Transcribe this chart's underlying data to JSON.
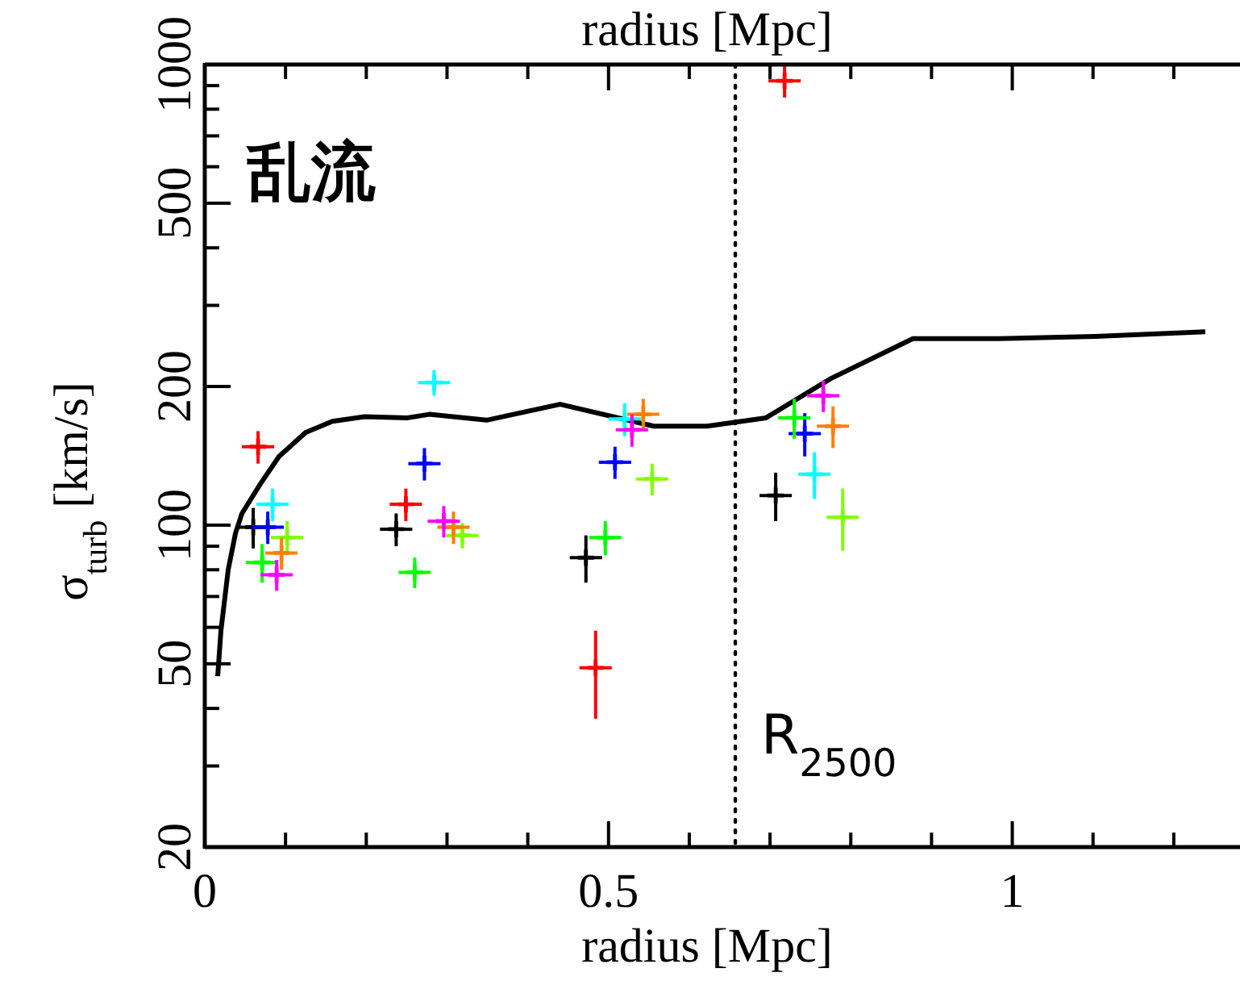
{
  "chart_data": {
    "type": "scatter",
    "xlabel": "radius [Mpc]",
    "x2label": "radius [Mpc]",
    "ylabel": "σ$_{turb}$ [km/s]",
    "annotations": [
      "乱流"
    ],
    "log": "y",
    "marker": "cross",
    "xlim": [
      0,
      1.28
    ],
    "ylim": [
      20,
      1000
    ],
    "xticks": [
      0,
      {
        "value": 0.1,
        "label": null
      },
      {
        "value": 0.2,
        "label": null
      },
      {
        "value": 0.3,
        "label": null
      },
      {
        "value": 0.4,
        "label": null
      },
      0.5,
      {
        "value": 0.6,
        "label": null
      },
      {
        "value": 0.7,
        "label": null
      },
      {
        "value": 0.8,
        "label": null
      },
      {
        "value": 0.9,
        "label": null
      },
      1,
      {
        "value": 1.1,
        "label": null
      },
      {
        "value": 1.2,
        "label": null
      }
    ],
    "yticks": [
      20,
      {
        "value": 30,
        "label": null
      },
      {
        "value": 40,
        "label": null
      },
      50,
      {
        "value": 60,
        "label": null
      },
      {
        "value": 70,
        "label": null
      },
      {
        "value": 80,
        "label": null
      },
      {
        "value": 90,
        "label": null
      },
      100,
      200,
      {
        "value": 300,
        "label": null
      },
      {
        "value": 400,
        "label": null
      },
      500,
      {
        "value": 600,
        "label": null
      },
      {
        "value": 700,
        "label": null
      },
      {
        "value": 800,
        "label": null
      },
      {
        "value": 900,
        "label": null
      },
      1000
    ],
    "ref_lines": [
      {
        "axis": "x",
        "value": 0.657,
        "label": "R$_{2500}$",
        "line_style": "dotted",
        "color": "#000000"
      }
    ],
    "series": [
      {
        "type": "line",
        "color": "#000000",
        "line_style": "solid",
        "marker": "none",
        "x": [
          0.016,
          0.02,
          0.029,
          0.038,
          0.046,
          0.069,
          0.092,
          0.125,
          0.158,
          0.198,
          0.251,
          0.278,
          0.349,
          0.44,
          0.556,
          0.622,
          0.695,
          0.775,
          0.877,
          0.983,
          1.103,
          1.239
        ],
        "values": [
          47,
          59,
          80,
          96,
          106,
          123,
          141,
          159,
          168,
          172,
          171,
          174,
          169,
          183,
          164,
          164,
          171,
          208,
          254,
          254,
          257,
          263
        ]
      },
      {
        "color": "#ff0000",
        "x": [
          0.066,
          0.249,
          0.484,
          0.718
        ],
        "values": [
          148,
          111,
          49,
          922
        ],
        "errors": [
          12,
          9,
          [
            38,
            59
          ],
          74
        ],
        "xerrors": [
          0.02,
          0.02,
          0.02,
          0.02
        ]
      },
      {
        "color": "#00ffff",
        "x": [
          0.084,
          0.284,
          0.52,
          0.755
        ],
        "values": [
          111,
          204,
          170,
          129
        ],
        "errors": [
          9,
          13,
          14,
          15
        ],
        "xerrors": [
          0.02,
          0.02,
          0.02,
          0.02
        ]
      },
      {
        "color": "#000000",
        "x": [
          0.06,
          0.237,
          0.472,
          0.707
        ],
        "values": [
          99,
          98,
          85,
          116
        ],
        "errors": [
          10,
          8,
          10,
          14
        ],
        "xerrors": [
          0.02,
          0.02,
          0.02,
          0.02
        ]
      },
      {
        "color": "#0000ff",
        "x": [
          0.078,
          0.272,
          0.508,
          0.743
        ],
        "values": [
          99,
          136,
          137,
          158
        ],
        "errors": [
          8,
          11,
          11,
          17
        ],
        "xerrors": [
          0.02,
          0.02,
          0.02,
          0.02
        ]
      },
      {
        "color": "#80ff00",
        "x": [
          0.102,
          0.319,
          0.554,
          0.79
        ],
        "values": [
          94,
          95,
          126,
          104
        ],
        "errors": [
          8,
          6,
          10,
          16
        ],
        "xerrors": [
          0.02,
          0.02,
          0.02,
          0.02
        ]
      },
      {
        "color": "#00ff00",
        "x": [
          0.071,
          0.26,
          0.496,
          0.73
        ],
        "values": [
          83,
          79,
          94,
          171
        ],
        "errors": [
          8,
          6,
          8,
          17
        ],
        "xerrors": [
          0.02,
          0.02,
          0.02,
          0.02
        ]
      },
      {
        "color": "#ff8000",
        "x": [
          0.095,
          0.308,
          0.543,
          0.778
        ],
        "values": [
          87,
          99,
          174,
          164
        ],
        "errors": [
          7,
          8,
          14,
          17
        ],
        "xerrors": [
          0.02,
          0.02,
          0.02,
          0.02
        ]
      },
      {
        "color": "#ff00ff",
        "x": [
          0.089,
          0.296,
          0.529,
          0.766
        ],
        "values": [
          78,
          102,
          161,
          191
        ],
        "errors": [
          6,
          8,
          13,
          15
        ],
        "xerrors": [
          0.02,
          0.02,
          0.02,
          0.02
        ]
      }
    ]
  }
}
